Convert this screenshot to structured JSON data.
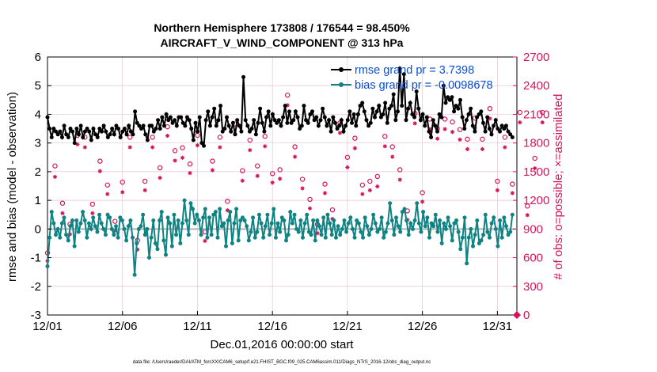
{
  "chart_data": {
    "type": "line",
    "title": "Northern Hemisphere 173808 / 176544 = 98.450%",
    "subtitle": "AIRCRAFT_V_WIND_COMPONENT @ 313 hPa",
    "xlabel": "Dec.01,2016 00:00:00 start",
    "ylabel": "rmse and bias (model - observation)",
    "y2label": "# of obs: o=possible; ×=assimilated",
    "footnote": "data file: /Users/raeder/DAI/ATM_forcXX/CAM6_setup/f.e21.FHIST_BGC.f09_025.CAM6assim.011/Diags_NTrS_2016-12/obs_diag_output.nc",
    "xlim": [
      0,
      31.3
    ],
    "ylim": [
      -3,
      6
    ],
    "y2lim": [
      0,
      2700
    ],
    "x_ticks": [
      0,
      5,
      10,
      15,
      20,
      25,
      30
    ],
    "x_tick_labels": [
      "12/01",
      "12/06",
      "12/11",
      "12/16",
      "12/21",
      "12/26",
      "12/31"
    ],
    "y_ticks": [
      -3,
      -2,
      -1,
      0,
      1,
      2,
      3,
      4,
      5,
      6
    ],
    "y2_ticks": [
      0,
      300,
      600,
      900,
      1200,
      1500,
      1800,
      2100,
      2400,
      2700
    ],
    "grid": true,
    "legend_position": "top-right",
    "colors": {
      "rmse": "#000000",
      "bias": "#0f8383",
      "obs": "#d4145a",
      "legend_text": "#0a4fd6",
      "zero_line": "#b3b3b3",
      "grid": "#e6c3d3"
    },
    "series": [
      {
        "name": "rmse grand pr = 3.7398",
        "axis": "left",
        "values": [
          3.9,
          3.5,
          3.2,
          3.5,
          3.4,
          3.3,
          3.4,
          3.2,
          3.6,
          3.3,
          3.2,
          3.5,
          3.4,
          3.0,
          3.5,
          3.3,
          3.6,
          3.2,
          3.4,
          3.5,
          3.4,
          3.1,
          3.5,
          3.3,
          3.2,
          3.5,
          3.4,
          3.6,
          3.4,
          3.2,
          3.3,
          3.5,
          3.3,
          3.6,
          3.5,
          3.2,
          3.4,
          3.5,
          3.3,
          3.6,
          3.4,
          3.3,
          4.1,
          3.7,
          3.6,
          3.5,
          3.6,
          3.3,
          3.1,
          3.6,
          3.6,
          3.4,
          3.5,
          3.8,
          3.5,
          3.9,
          3.6,
          4.0,
          3.8,
          3.9,
          3.7,
          3.8,
          3.6,
          3.9,
          3.9,
          3.7,
          3.6,
          3.9,
          3.8,
          3.5,
          3.1,
          3.7,
          3.4,
          3.9,
          3.0,
          2.9,
          3.8,
          4.1,
          3.6,
          3.9,
          4.2,
          3.6,
          3.8,
          4.3,
          3.4,
          3.5,
          3.9,
          3.6,
          3.4,
          3.7,
          3.3,
          3.8,
          3.6,
          3.4,
          5.3,
          3.8,
          3.6,
          3.4,
          3.5,
          3.8,
          3.3,
          3.7,
          4.2,
          3.7,
          3.4,
          3.9,
          4.1,
          3.6,
          4.0,
          3.8,
          3.7,
          3.8,
          3.6,
          3.9,
          4.3,
          3.7,
          4.1,
          3.7,
          3.8,
          4.1,
          3.9,
          3.5,
          3.6,
          4.3,
          3.8,
          3.7,
          4.0,
          4.1,
          3.8,
          3.9,
          3.6,
          3.8,
          4.2,
          3.9,
          3.6,
          3.8,
          3.4,
          3.9,
          3.7,
          3.5,
          3.6,
          3.8,
          3.4,
          3.6,
          3.8,
          4.1,
          3.7,
          4.0,
          3.6,
          4.0,
          4.3,
          4.4,
          4.1,
          3.8,
          3.6,
          3.7,
          4.2,
          3.9,
          4.1,
          4.3,
          3.9,
          4.0,
          4.4,
          3.7,
          4.2,
          4.3,
          4.7,
          3.8,
          4.1,
          5.6,
          4.3,
          5.4,
          3.8,
          4.2,
          4.4,
          4.0,
          3.9,
          4.8,
          4.2,
          3.8,
          4.0,
          3.6,
          3.9,
          3.4,
          3.2,
          3.8,
          3.6,
          3.4,
          4.0,
          3.9,
          5.0,
          4.4,
          4.6,
          4.5,
          4.6,
          4.1,
          4.3,
          4.2,
          4.5,
          3.9,
          3.5,
          3.8,
          4.0,
          4.2,
          3.6,
          3.4,
          3.9,
          4.0,
          4.1,
          3.7,
          3.4,
          3.9,
          3.5,
          3.3,
          3.6,
          3.8,
          3.5,
          3.4,
          3.6,
          3.5,
          3.6,
          3.4,
          3.3,
          3.2
        ]
      },
      {
        "name": "bias grand pr = -0.0098678",
        "axis": "left",
        "values": [
          -1.3,
          -0.3,
          0.6,
          0.2,
          -0.2,
          0.0,
          -0.3,
          0.2,
          0.4,
          -0.2,
          -0.4,
          0.1,
          0.3,
          -0.6,
          0.3,
          -0.1,
          0.2,
          0.6,
          0.3,
          -0.3,
          0.2,
          0.0,
          0.4,
          0.1,
          -0.1,
          0.5,
          0.2,
          0.0,
          -0.2,
          0.5,
          0.4,
          0.0,
          -0.2,
          0.1,
          -0.3,
          0.4,
          0.3,
          0.0,
          -0.4,
          0.1,
          0.3,
          -0.3,
          -1.6,
          -0.5,
          0.0,
          0.1,
          0.5,
          -0.2,
          0.0,
          -1.0,
          -0.3,
          0.3,
          -0.5,
          -0.7,
          0.3,
          0.6,
          -0.4,
          -0.9,
          0.4,
          0.2,
          -0.6,
          0.5,
          -0.2,
          0.3,
          -0.5,
          0.2,
          1.0,
          0.3,
          -0.2,
          0.9,
          0.7,
          0.2,
          0.5,
          0.3,
          -0.2,
          0.4,
          0.7,
          -0.3,
          0.4,
          -0.2,
          0.5,
          0.6,
          -0.3,
          0.7,
          0.1,
          0.2,
          -0.6,
          0.3,
          0.6,
          -0.5,
          0.2,
          0.7,
          -0.4,
          0.3,
          0.4,
          0.3,
          0.1,
          -0.4,
          -0.1,
          0.4,
          -0.3,
          -0.1,
          0.5,
          0.2,
          -0.3,
          0.1,
          0.5,
          -0.2,
          0.2,
          0.7,
          -0.3,
          0.2,
          -0.1,
          0.4,
          0.3,
          -0.4,
          -0.2,
          0.6,
          0.2,
          0.5,
          0.0,
          -0.1,
          0.3,
          -0.3,
          0.2,
          0.5,
          -0.1,
          -0.2,
          0.3,
          -0.4,
          0.3,
          0.1,
          -0.2,
          0.4,
          -0.3,
          0.5,
          0.2,
          -0.2,
          0.3,
          -0.3,
          0.1,
          -0.2,
          0.0,
          0.3,
          -0.1,
          0.2,
          0.4,
          0.0,
          -0.3,
          0.3,
          0.2,
          -0.1,
          -0.3,
          0.4,
          0.1,
          -0.2,
          0.0,
          0.5,
          0.2,
          -0.1,
          0.0,
          0.4,
          -0.3,
          -0.1,
          0.2,
          0.9,
          0.3,
          -0.2,
          0.4,
          0.1,
          -0.1,
          0.6,
          0.7,
          0.3,
          -0.2,
          0.2,
          0.0,
          0.3,
          0.9,
          0.2,
          -0.1,
          0.6,
          0.1,
          0.4,
          -0.3,
          0.2,
          0.1,
          0.5,
          -0.1,
          0.3,
          -0.5,
          0.2,
          0.0,
          0.4,
          0.1,
          -0.4,
          0.2,
          0.3,
          -0.1,
          -0.7,
          -0.3,
          0.4,
          -1.2,
          -0.3,
          0.0,
          -0.6,
          -0.2,
          0.3,
          -0.5,
          -0.4,
          -0.2,
          0.5,
          -0.1,
          -0.3,
          0.2,
          0.4,
          0.0,
          -0.6,
          0.3,
          -0.3,
          0.4,
          0.1,
          -0.2,
          -0.1,
          0.5
        ]
      }
    ],
    "obs_possible": [
      650,
      1560,
      1170,
      950,
      1880,
      1860,
      1160,
      1610,
      1360,
      980,
      1390,
      1860,
      780,
      1400,
      1860,
      1540,
      1970,
      1720,
      1750,
      1580,
      1880,
      870,
      1610,
      1860,
      1190,
      2000,
      1510,
      1830,
      1560,
      1870,
      1480,
      1520,
      2300,
      1760,
      1420,
      1210,
      950,
      1370,
      1100,
      2010,
      1650,
      1850,
      1360,
      1400,
      1450,
      1870,
      1760,
      1520,
      1090,
      2110,
      1280,
      2050,
      1950,
      2050,
      2020,
      1940,
      1840,
      2060,
      1840,
      2160,
      1400,
      1860,
      1370,
      2120,
      1140,
      1640,
      2120
    ],
    "obs_assimilated": [
      640,
      1520,
      1140,
      920,
      1860,
      1830,
      1140,
      1580,
      1340,
      960,
      1360,
      1830,
      760,
      1380,
      1830,
      1510,
      1950,
      1690,
      1720,
      1560,
      1850,
      850,
      1590,
      1830,
      1170,
      1970,
      1480,
      1800,
      1530,
      1840,
      1460,
      1500,
      2270,
      1730,
      1400,
      1190,
      930,
      1350,
      1080,
      1980,
      1620,
      1820,
      1340,
      1380,
      1420,
      1840,
      1730,
      1490,
      1070,
      2080,
      1260,
      2020,
      1920,
      2020,
      1990,
      1910,
      1810,
      2030,
      1810,
      2130,
      1380,
      1830,
      1350,
      2090,
      1120,
      1610,
      2090
    ],
    "obs_x_step": 0.5,
    "obs_final_zero_x": 31.3
  }
}
